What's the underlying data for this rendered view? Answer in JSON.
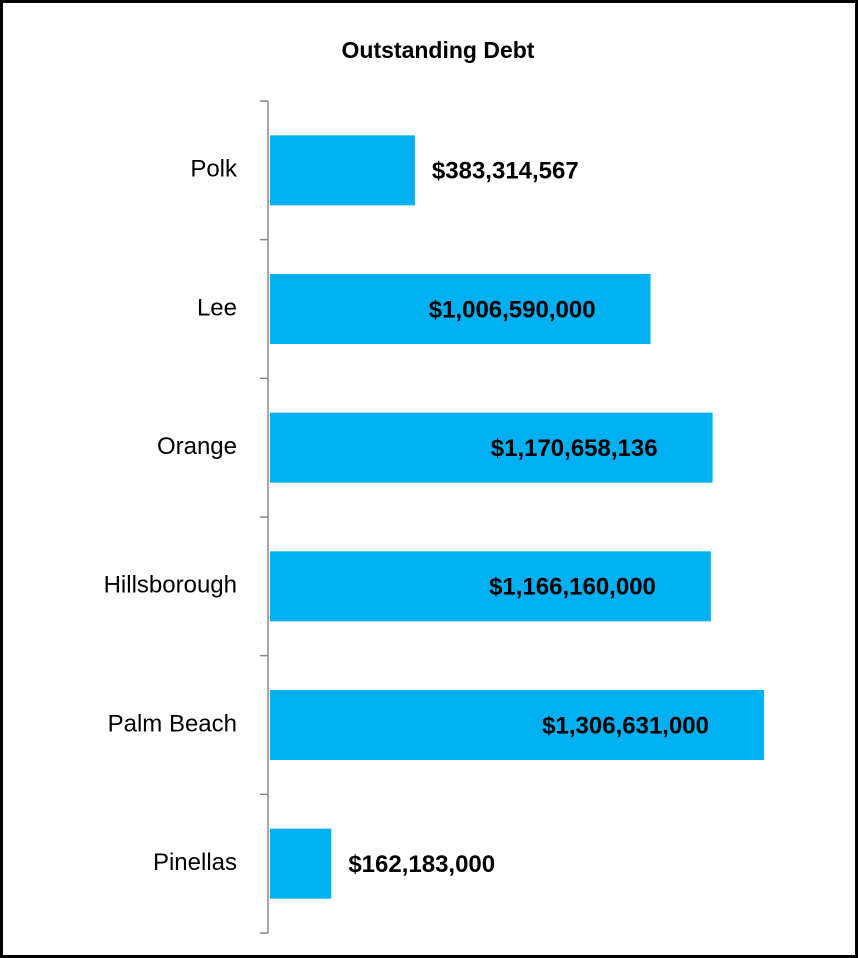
{
  "chart_data": {
    "type": "bar",
    "orientation": "horizontal",
    "title": "Outstanding Debt",
    "categories": [
      "Polk",
      "Lee",
      "Orange",
      "Hillsborough",
      "Palm Beach",
      "Pinellas"
    ],
    "values": [
      383314567,
      1006590000,
      1170658136,
      1166160000,
      1306631000,
      162183000
    ],
    "value_labels": [
      "$383,314,567",
      "$1,006,590,000",
      "$1,170,658,136",
      "$1,166,160,000",
      "$1,306,631,000",
      "$162,183,000"
    ],
    "color": "#00b0f0"
  }
}
